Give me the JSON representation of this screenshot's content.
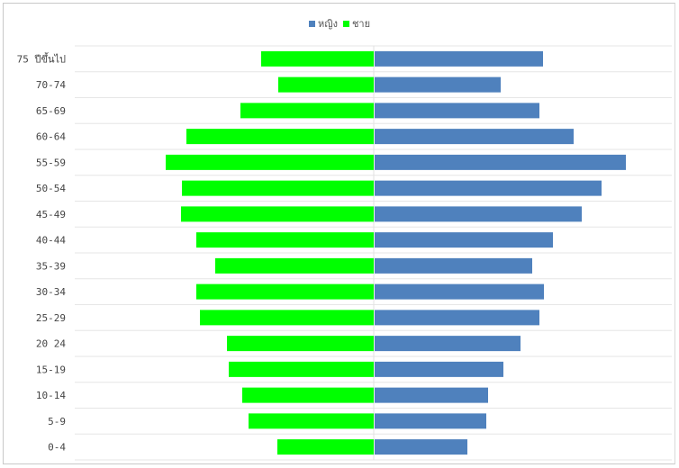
{
  "chart_data": {
    "type": "bar",
    "orientation": "horizontal-population-pyramid",
    "categories": [
      "75 ปีขึ้นไป",
      "70-74",
      "65-69",
      "60-64",
      "55-59",
      "50-54",
      "45-49",
      "40-44",
      "35-39",
      "30-34",
      "25-29",
      "20 24",
      "15-19",
      "10-14",
      "5-9",
      "0-4"
    ],
    "series": [
      {
        "name": "หญิง",
        "color": "#4f81bd",
        "side": "right",
        "values": [
          187,
          140,
          183,
          221,
          279,
          252,
          230,
          198,
          175,
          188,
          183,
          162,
          143,
          126,
          124,
          103
        ]
      },
      {
        "name": "ชาย",
        "color": "#00ff00",
        "side": "left",
        "values": [
          125,
          106,
          148,
          208,
          231,
          213,
          214,
          197,
          176,
          197,
          193,
          163,
          161,
          146,
          139,
          107
        ]
      }
    ],
    "xlim": [
      -335,
      335
    ],
    "grid": true,
    "legend_position": "top-center",
    "title": "",
    "xlabel": "",
    "ylabel": ""
  }
}
